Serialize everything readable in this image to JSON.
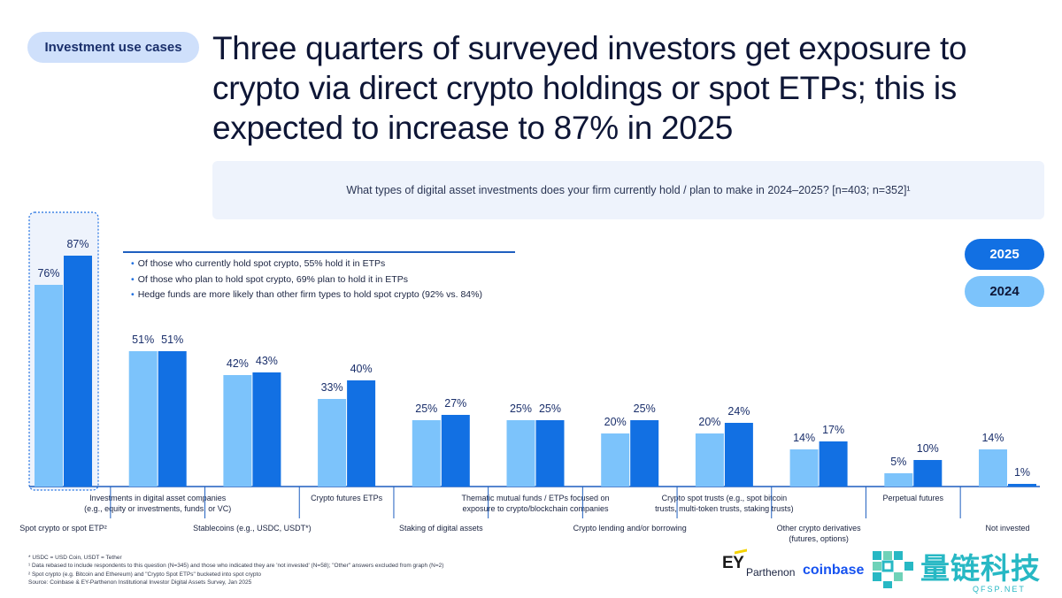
{
  "tag": "Investment use cases",
  "headline": "Three quarters of surveyed investors get exposure to crypto via direct crypto holdings or spot ETPs; this is expected to increase to 87% in 2025",
  "question": "What types of digital asset investments does your firm currently hold / plan to make in 2024–2025? [n=403; n=352]¹",
  "notes": [
    "Of those who currently hold spot crypto, 55% hold it in ETPs",
    "Of those who plan to hold spot crypto, 69% plan to hold it in ETPs",
    "Hedge funds are more likely than other firm types to hold spot crypto (92% vs. 84%)"
  ],
  "legend": {
    "y2025": "2025",
    "y2024": "2024"
  },
  "colors": {
    "y2024": "#7cc3fb",
    "y2025": "#1270e3",
    "accent": "#1f5fbf"
  },
  "chart_data": {
    "type": "bar",
    "title": "What types of digital asset investments does your firm currently hold / plan to make in 2024–2025? [n=403; n=352]¹",
    "xlabel": "",
    "ylabel": "",
    "ylim": [
      0,
      100
    ],
    "categories": [
      "Spot crypto or spot ETP²",
      "Investments in digital asset companies (e.g., equity or investments, funds, or VC)",
      "Stablecoins (e.g., USDC, USDT*)",
      "Crypto futures ETPs",
      "Staking of digital assets",
      "Thematic mutual funds / ETPs focused on exposure to crypto/blockchain companies",
      "Crypto lending and/or borrowing",
      "Crypto spot trusts (e.g., spot bitcoin trusts, multi-token trusts, staking trusts)",
      "Other crypto derivatives (futures, options)",
      "Perpetual futures",
      "Not invested"
    ],
    "category_lines": [
      [
        "Spot crypto or spot ETP²"
      ],
      [
        "Investments in digital asset companies",
        "(e.g., equity or investments, funds, or VC)"
      ],
      [
        "Stablecoins (e.g., USDC, USDT*)"
      ],
      [
        "Crypto futures ETPs"
      ],
      [
        "Staking of digital assets"
      ],
      [
        "Thematic mutual funds / ETPs focused on",
        "exposure to crypto/blockchain companies"
      ],
      [
        "Crypto lending and/or borrowing"
      ],
      [
        "Crypto spot trusts (e.g., spot bitcoin",
        "trusts, multi-token trusts, staking trusts)"
      ],
      [
        "Other crypto derivatives",
        "(futures, options)"
      ],
      [
        "Perpetual futures"
      ],
      [
        "Not invested"
      ]
    ],
    "series": [
      {
        "name": "2024",
        "values": [
          76,
          51,
          42,
          33,
          25,
          25,
          20,
          20,
          14,
          5,
          14
        ]
      },
      {
        "name": "2025",
        "values": [
          87,
          51,
          43,
          40,
          27,
          25,
          25,
          24,
          17,
          10,
          1
        ]
      }
    ],
    "data_labels": [
      [
        "76%",
        "51%",
        "42%",
        "33%",
        "25%",
        "25%",
        "20%",
        "20%",
        "14%",
        "5%",
        "14%"
      ],
      [
        "87%",
        "51%",
        "43%",
        "40%",
        "27%",
        "25%",
        "25%",
        "24%",
        "17%",
        "10%",
        "1%"
      ]
    ],
    "legend": "right",
    "grid": false
  },
  "footnotes": [
    "* USDC = USD Coin, USDT = Tether",
    "¹ Data rebased to include respondents to this question (N=345) and those who indicated they are 'not invested' (N=58); \"Other\" answers excluded from graph (N=2)",
    "² Spot crypto (e.g. Bitcoin and Ethereum) and \"Crypto Spot ETPs\" bucketed into spot crypto",
    "Source: Coinbase & EY-Parthenon Institutional Investor Digital Assets Survey, Jan 2025"
  ],
  "logos": {
    "ey": "EY",
    "parthenon": "Parthenon",
    "coinbase": "coinbase",
    "cn": "量链科技",
    "cn_sub": "QFSP.NET"
  }
}
